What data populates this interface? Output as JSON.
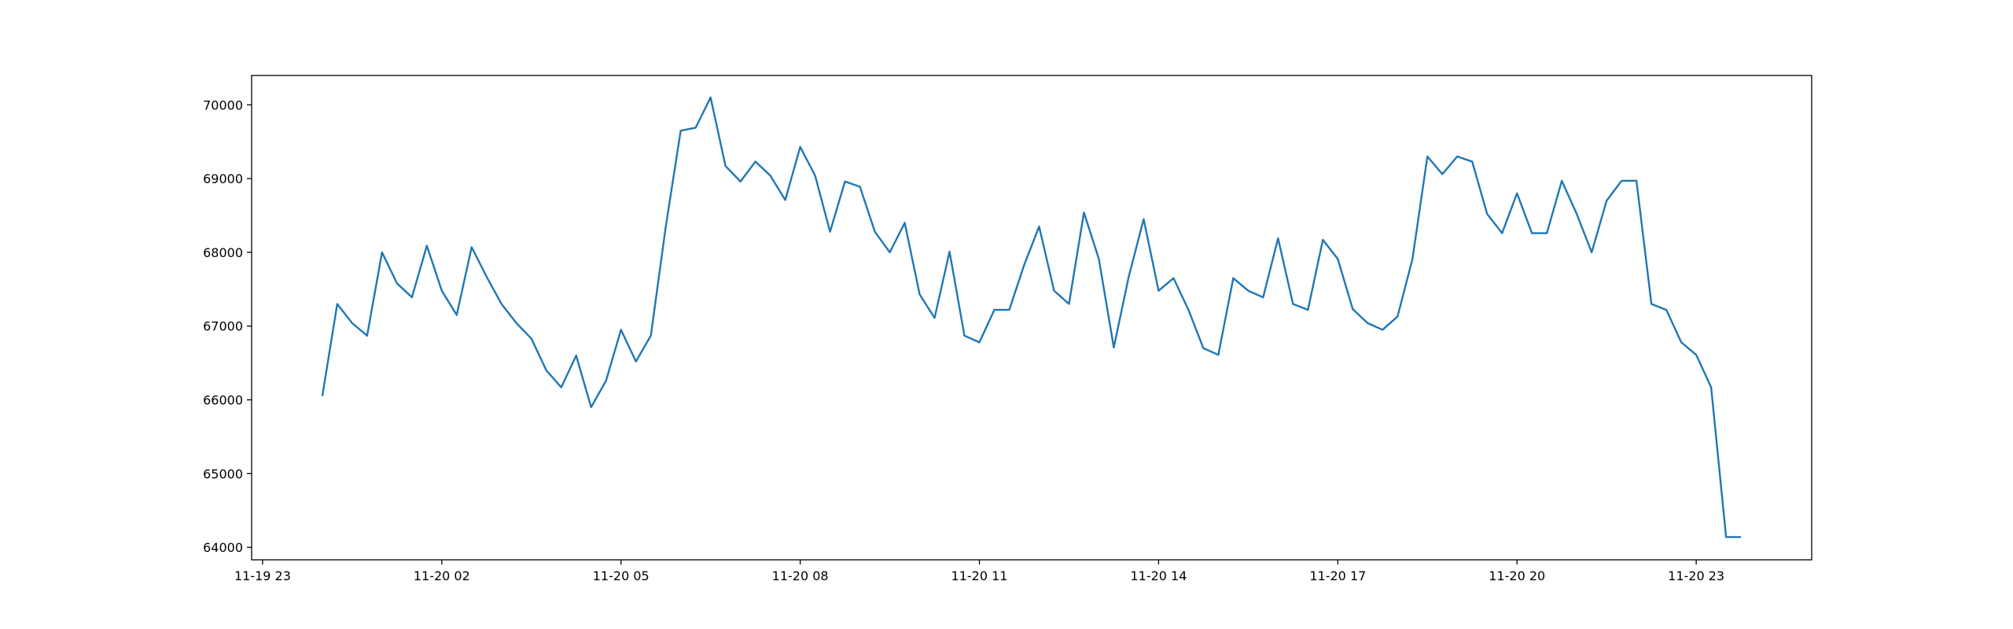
{
  "chart_data": {
    "type": "line",
    "color": "#1f77b4",
    "x": [
      "11-20 00:00",
      "11-20 00:15",
      "11-20 00:30",
      "11-20 00:45",
      "11-20 01:00",
      "11-20 01:15",
      "11-20 01:30",
      "11-20 01:45",
      "11-20 02:00",
      "11-20 02:15",
      "11-20 02:30",
      "11-20 02:45",
      "11-20 03:00",
      "11-20 03:15",
      "11-20 03:30",
      "11-20 03:45",
      "11-20 04:00",
      "11-20 04:15",
      "11-20 04:30",
      "11-20 04:45",
      "11-20 05:00",
      "11-20 05:15",
      "11-20 05:30",
      "11-20 05:45",
      "11-20 06:00",
      "11-20 06:15",
      "11-20 06:30",
      "11-20 06:45",
      "11-20 07:00",
      "11-20 07:15",
      "11-20 07:30",
      "11-20 07:45",
      "11-20 08:00",
      "11-20 08:15",
      "11-20 08:30",
      "11-20 08:45",
      "11-20 09:00",
      "11-20 09:15",
      "11-20 09:30",
      "11-20 09:45",
      "11-20 10:00",
      "11-20 10:15",
      "11-20 10:30",
      "11-20 10:45",
      "11-20 11:00",
      "11-20 11:15",
      "11-20 11:30",
      "11-20 11:45",
      "11-20 12:00",
      "11-20 12:15",
      "11-20 12:30",
      "11-20 12:45",
      "11-20 13:00",
      "11-20 13:15",
      "11-20 13:30",
      "11-20 13:45",
      "11-20 14:00",
      "11-20 14:15",
      "11-20 14:30",
      "11-20 14:45",
      "11-20 15:00",
      "11-20 15:15",
      "11-20 15:30",
      "11-20 15:45",
      "11-20 16:00",
      "11-20 16:15",
      "11-20 16:30",
      "11-20 16:45",
      "11-20 17:00",
      "11-20 17:15",
      "11-20 17:30",
      "11-20 17:45",
      "11-20 18:00",
      "11-20 18:15",
      "11-20 18:30",
      "11-20 18:45",
      "11-20 19:00",
      "11-20 19:15",
      "11-20 19:30",
      "11-20 19:45",
      "11-20 20:00",
      "11-20 20:15",
      "11-20 20:30",
      "11-20 20:45",
      "11-20 21:00",
      "11-20 21:15",
      "11-20 21:30",
      "11-20 21:45",
      "11-20 22:00",
      "11-20 22:15",
      "11-20 22:30",
      "11-20 22:45",
      "11-20 23:00",
      "11-20 23:15",
      "11-20 23:30",
      "11-20 23:45"
    ],
    "values": [
      66050,
      67300,
      67040,
      66870,
      68000,
      67580,
      67390,
      68090,
      67480,
      67150,
      68070,
      67670,
      67300,
      67040,
      66830,
      66400,
      66170,
      66600,
      65900,
      66260,
      66950,
      66520,
      66870,
      68350,
      69650,
      69690,
      70100,
      69170,
      68960,
      69230,
      69040,
      68710,
      69430,
      69040,
      68280,
      68960,
      68890,
      68280,
      68000,
      68400,
      67430,
      67110,
      68010,
      66870,
      66780,
      67220,
      67220,
      67830,
      68350,
      67480,
      67300,
      68540,
      67910,
      66710,
      67670,
      68450,
      67480,
      67650,
      67220,
      66700,
      66610,
      67650,
      67480,
      67390,
      68190,
      67300,
      67220,
      68170,
      67910,
      67230,
      67040,
      66950,
      67130,
      67910,
      69300,
      69060,
      69300,
      69230,
      68520,
      68260,
      68800,
      68260,
      68260,
      68970,
      68520,
      68000,
      68700,
      68970,
      68970,
      67300,
      67220,
      66780,
      66610,
      66170,
      64140,
      64140
    ],
    "xlim": [
      "11-19 22:49",
      "11-21 00:56"
    ],
    "xticks": [
      "11-19 23",
      "11-20 02",
      "11-20 05",
      "11-20 08",
      "11-20 11",
      "11-20 14",
      "11-20 17",
      "11-20 20",
      "11-20 23"
    ],
    "ylim": [
      63831,
      70398
    ],
    "yticks": [
      64000,
      65000,
      66000,
      67000,
      68000,
      69000,
      70000
    ]
  }
}
